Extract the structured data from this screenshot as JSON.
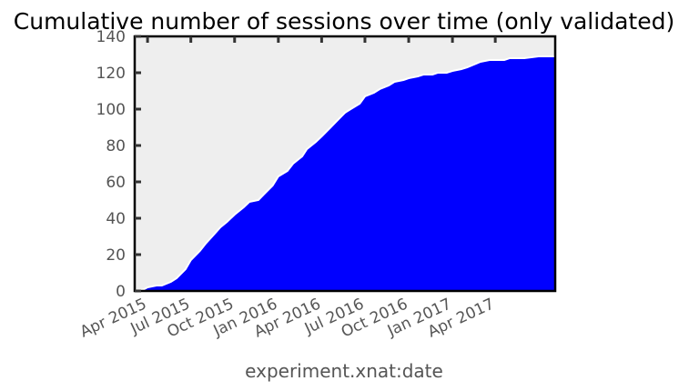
{
  "chart_data": {
    "type": "area",
    "title": "Cumulative number of sessions over time (only validated)",
    "xlabel": "experiment.xnat:date",
    "ylabel": "",
    "ylim": [
      0,
      140
    ],
    "xlim": [
      "2015-03-05",
      "2017-08-05"
    ],
    "yticks": [
      0,
      20,
      40,
      60,
      80,
      100,
      120,
      140
    ],
    "xticks": [
      {
        "date": "2015-04-01",
        "label": "Apr 2015"
      },
      {
        "date": "2015-07-01",
        "label": "Jul 2015"
      },
      {
        "date": "2015-10-01",
        "label": "Oct 2015"
      },
      {
        "date": "2016-01-01",
        "label": "Jan 2016"
      },
      {
        "date": "2016-04-01",
        "label": "Apr 2016"
      },
      {
        "date": "2016-07-01",
        "label": "Jul 2016"
      },
      {
        "date": "2016-10-01",
        "label": "Oct 2016"
      },
      {
        "date": "2017-01-01",
        "label": "Jan 2017"
      },
      {
        "date": "2017-04-01",
        "label": "Apr 2017"
      }
    ],
    "grid": false,
    "style": "xkcd",
    "colors": {
      "fill": "#0000ff",
      "edge": "#ffffff",
      "background": "#eeeeee"
    },
    "series": [
      {
        "x": [
          "2015-03-10",
          "2015-03-25",
          "2015-04-01",
          "2015-04-20",
          "2015-05-01",
          "2015-05-20",
          "2015-06-01",
          "2015-06-20",
          "2015-07-01",
          "2015-07-20",
          "2015-08-01",
          "2015-08-15",
          "2015-09-01",
          "2015-09-15",
          "2015-10-01",
          "2015-10-20",
          "2015-11-01",
          "2015-11-20",
          "2015-12-01",
          "2015-12-20",
          "2016-01-01",
          "2016-01-20",
          "2016-02-01",
          "2016-02-20",
          "2016-03-01",
          "2016-03-20",
          "2016-04-01",
          "2016-04-20",
          "2016-05-01",
          "2016-05-20",
          "2016-06-01",
          "2016-06-20",
          "2016-07-01",
          "2016-07-20",
          "2016-08-01",
          "2016-08-20",
          "2016-09-01",
          "2016-09-20",
          "2016-10-01",
          "2016-10-20",
          "2016-11-01",
          "2016-11-20",
          "2016-12-01",
          "2016-12-20",
          "2017-01-01",
          "2017-01-20",
          "2017-02-01",
          "2017-02-20",
          "2017-03-01",
          "2017-03-20",
          "2017-04-01",
          "2017-04-20",
          "2017-05-01",
          "2017-05-20",
          "2017-06-01",
          "2017-07-01",
          "2017-08-01"
        ],
        "y": [
          0,
          1,
          2,
          3,
          3,
          5,
          7,
          12,
          17,
          22,
          26,
          30,
          35,
          38,
          42,
          46,
          49,
          50,
          53,
          58,
          63,
          66,
          70,
          74,
          78,
          82,
          85,
          90,
          93,
          98,
          100,
          103,
          107,
          109,
          111,
          113,
          115,
          116,
          117,
          118,
          119,
          119,
          120,
          120,
          121,
          122,
          123,
          125,
          126,
          127,
          127,
          127,
          128,
          128,
          128,
          129,
          129
        ]
      }
    ]
  }
}
